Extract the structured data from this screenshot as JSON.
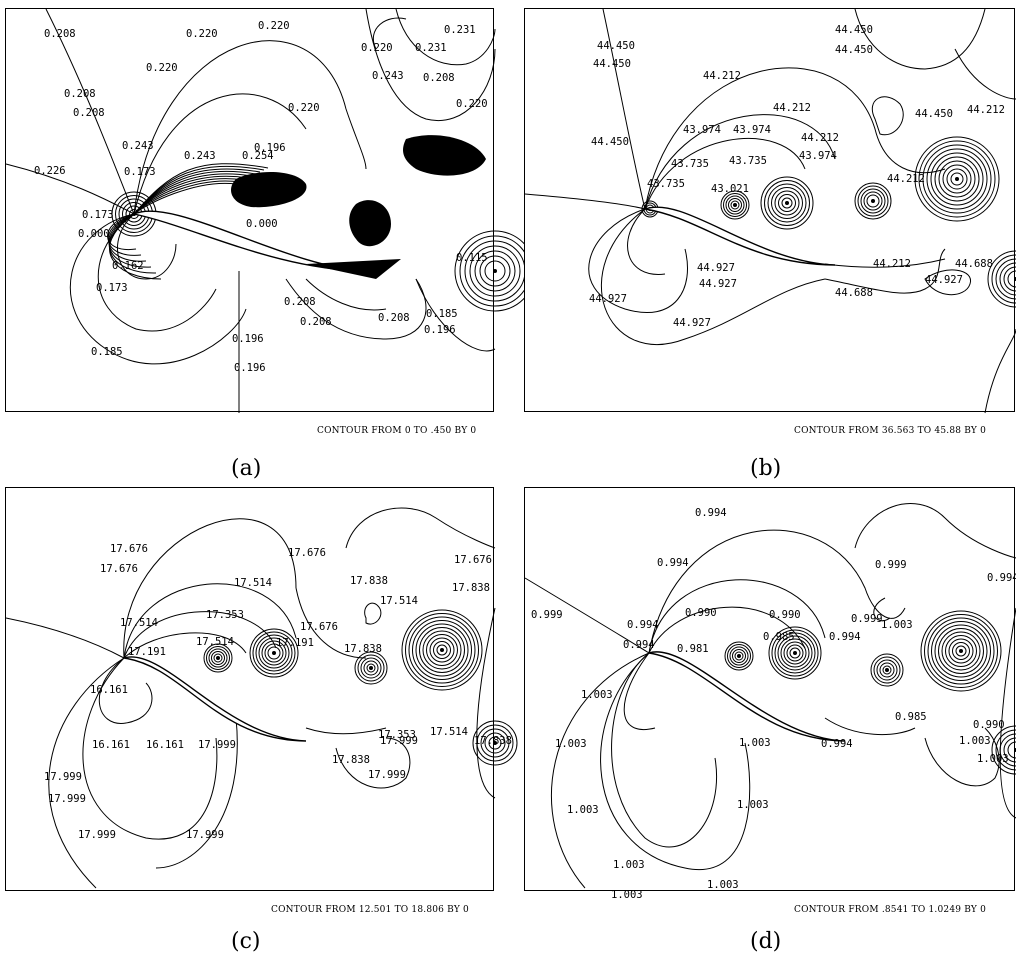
{
  "panels": [
    {
      "caption": "(a)",
      "footer": "CONTOUR FROM 0 TO .450 BY 0",
      "labels": [
        "0.208",
        "0.220",
        "0.220",
        "0.220",
        "0.231",
        "0.231",
        "0.220",
        "0.243",
        "0.208",
        "0.208",
        "0.208",
        "0.220",
        "0.220",
        "0.243",
        "0.243",
        "0.254",
        "0.196",
        "0.226",
        "0.173",
        "0.173",
        "0.000",
        "0.162",
        "0.173",
        "0.000",
        "0.185",
        "0.196",
        "0.196",
        "0.208",
        "0.208",
        "0.208",
        "0.185",
        "0.196",
        "0.115"
      ]
    },
    {
      "caption": "(b)",
      "footer": "CONTOUR FROM 36.563 TO 45.88 BY 0",
      "labels": [
        "44.450",
        "44.450",
        "44.450",
        "44.450",
        "44.212",
        "44.212",
        "44.450",
        "44.212",
        "43.974",
        "43.974",
        "44.212",
        "44.450",
        "43.735",
        "43.735",
        "43.974",
        "43.735",
        "43.021",
        "44.212",
        "44.927",
        "44.927",
        "44.927",
        "44.927",
        "44.212",
        "44.688",
        "44.927",
        "44.688"
      ]
    },
    {
      "caption": "(c)",
      "footer": "CONTOUR FROM 12.501 TO 18.806 BY 0",
      "labels": [
        "17.676",
        "17.676",
        "17.676",
        "17.676",
        "17.514",
        "17.838",
        "17.514",
        "17.838",
        "17.514",
        "17.353",
        "17.191",
        "17.514",
        "17.838",
        "17.191",
        "17.676",
        "16.161",
        "16.161",
        "16.161",
        "17.999",
        "17.999",
        "17.999",
        "17.999",
        "17.999",
        "17.838",
        "17.999",
        "17.999",
        "17.353",
        "17.514",
        "17.838"
      ]
    },
    {
      "caption": "(d)",
      "footer": "CONTOUR FROM .8541 TO 1.0249 BY 0",
      "labels": [
        "0.994",
        "0.994",
        "0.999",
        "0.994",
        "0.999",
        "0.994",
        "0.990",
        "0.990",
        "0.999",
        "0.994",
        "1.003",
        "0.985",
        "0.981",
        "0.994",
        "1.003",
        "1.003",
        "1.003",
        "1.003",
        "1.003",
        "1.003",
        "1.003",
        "1.003",
        "1.003",
        "0.994",
        "0.985",
        "0.990",
        "1.003"
      ]
    }
  ]
}
